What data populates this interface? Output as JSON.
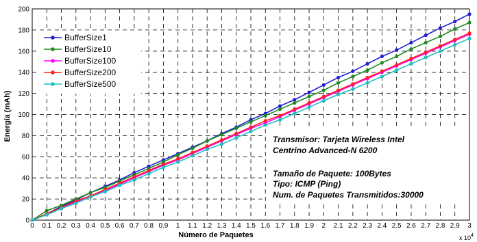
{
  "chart_data": {
    "type": "line",
    "xlabel": "Número de Paquetes",
    "ylabel": "Energía (mAh)",
    "x_multiplier_label": "x 10",
    "x_multiplier_exp": "4",
    "xlim": [
      0,
      3
    ],
    "ylim": [
      0,
      200
    ],
    "x": [
      0,
      0.1,
      0.2,
      0.3,
      0.4,
      0.5,
      0.6,
      0.7,
      0.8,
      0.9,
      1.0,
      1.1,
      1.2,
      1.3,
      1.4,
      1.5,
      1.6,
      1.7,
      1.8,
      1.9,
      2.0,
      2.1,
      2.2,
      2.3,
      2.4,
      2.5,
      2.6,
      2.7,
      2.8,
      2.9,
      3.0
    ],
    "x_ticks": [
      "0",
      "0.1",
      "0.2",
      "0.3",
      "0.4",
      "0.5",
      "0.6",
      "0.7",
      "0.8",
      "0.9",
      "1",
      "1.1",
      "1.2",
      "1.3",
      "1.4",
      "1.5",
      "1.6",
      "1.7",
      "1.8",
      "1.9",
      "2",
      "2.1",
      "2.2",
      "2.3",
      "2.4",
      "2.5",
      "2.6",
      "2.7",
      "2.8",
      "2.9",
      "3"
    ],
    "y_ticks": [
      "0",
      "20",
      "40",
      "60",
      "80",
      "100",
      "120",
      "140",
      "160",
      "180",
      "200"
    ],
    "grid": true,
    "legend_position": "top-left",
    "series": [
      {
        "name": "BufferSize1",
        "color": "#1f1fd0",
        "values": [
          0,
          6,
          13,
          19,
          26,
          32,
          38,
          45,
          51,
          57,
          63,
          69,
          75,
          82,
          88,
          95,
          101,
          108,
          114,
          121,
          128,
          135,
          141,
          148,
          155,
          161,
          168,
          175,
          182,
          188,
          195
        ]
      },
      {
        "name": "BufferSize10",
        "color": "#1f8a1f",
        "values": [
          0,
          9,
          14,
          20,
          26,
          31,
          37,
          43,
          49,
          55,
          62,
          68,
          75,
          81,
          87,
          93,
          99,
          105,
          111,
          117,
          123,
          130,
          136,
          142,
          149,
          155,
          162,
          168,
          174,
          181,
          187
        ]
      },
      {
        "name": "BufferSize100",
        "color": "#ff00ff",
        "values": [
          0,
          6,
          11,
          17,
          23,
          28,
          34,
          40,
          46,
          52,
          57,
          63,
          69,
          75,
          81,
          87,
          92,
          98,
          104,
          110,
          116,
          122,
          128,
          134,
          140,
          146,
          152,
          158,
          164,
          170,
          176
        ]
      },
      {
        "name": "BufferSize200",
        "color": "#ff1f1f",
        "values": [
          0,
          6,
          12,
          18,
          23,
          29,
          35,
          41,
          47,
          53,
          58,
          64,
          70,
          76,
          82,
          88,
          94,
          99,
          105,
          111,
          117,
          123,
          129,
          135,
          141,
          147,
          153,
          159,
          165,
          171,
          177
        ]
      },
      {
        "name": "BufferSize500",
        "color": "#1fbfbf",
        "values": [
          0,
          5,
          11,
          16,
          22,
          27,
          33,
          38,
          44,
          50,
          55,
          61,
          67,
          72,
          78,
          84,
          90,
          95,
          101,
          107,
          113,
          119,
          124,
          130,
          136,
          142,
          148,
          154,
          160,
          166,
          172
        ]
      }
    ],
    "annotations": [
      "Transmisor: Tarjeta Wireless Intel",
      "Centrino Advanced-N 6200",
      "Tamaño de Paquete: 100Bytes",
      "Tipo: ICMP (Ping)",
      "Num. de Paquetes Transmitidos:30000"
    ]
  }
}
